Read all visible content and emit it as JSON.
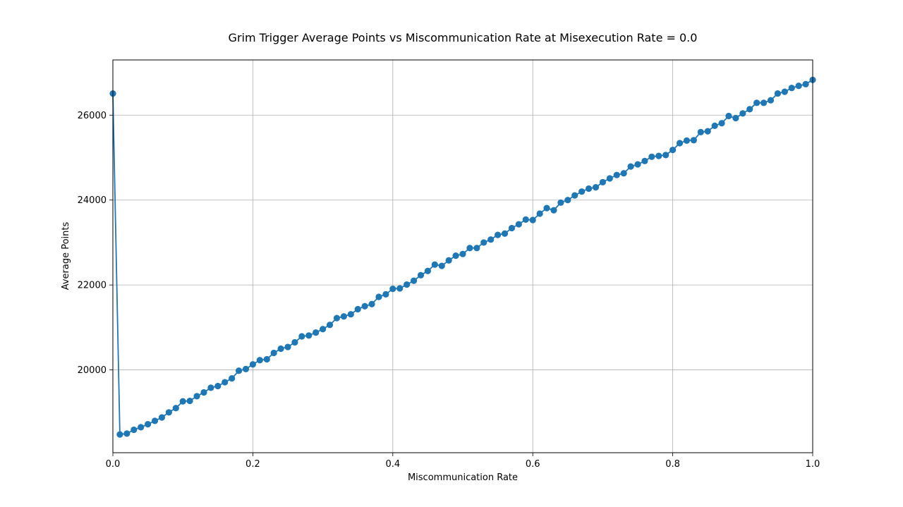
{
  "chart_data": {
    "type": "line",
    "title": "Grim Trigger Average Points vs Miscommunication Rate at Misexecution Rate = 0.0",
    "xlabel": "Miscommunication Rate",
    "ylabel": "Average Points",
    "xlim": [
      0.0,
      1.0
    ],
    "ylim": [
      18050,
      27300
    ],
    "xticks": [
      "0.0",
      "0.2",
      "0.4",
      "0.6",
      "0.8",
      "1.0"
    ],
    "yticks": [
      "20000",
      "22000",
      "24000",
      "26000"
    ],
    "grid": true,
    "marker": "circle",
    "series_color": "#1f77b4",
    "series": [
      {
        "x": [
          0.0,
          0.01,
          0.02,
          0.03,
          0.04,
          0.05,
          0.06,
          0.07,
          0.08,
          0.09,
          0.1,
          0.11,
          0.12,
          0.13,
          0.14,
          0.15,
          0.16,
          0.17,
          0.18,
          0.19,
          0.2,
          0.21,
          0.22,
          0.23,
          0.24,
          0.25,
          0.26,
          0.27,
          0.28,
          0.29,
          0.3,
          0.31,
          0.32,
          0.33,
          0.34,
          0.35,
          0.36,
          0.37,
          0.38,
          0.39,
          0.4,
          0.41,
          0.42,
          0.43,
          0.44,
          0.45,
          0.46,
          0.47,
          0.48,
          0.49,
          0.5,
          0.51,
          0.52,
          0.53,
          0.54,
          0.55,
          0.56,
          0.57,
          0.58,
          0.59,
          0.6,
          0.61,
          0.62,
          0.63,
          0.64,
          0.65,
          0.66,
          0.67,
          0.68,
          0.69,
          0.7,
          0.71,
          0.72,
          0.73,
          0.74,
          0.75,
          0.76,
          0.77,
          0.78,
          0.79,
          0.8,
          0.81,
          0.82,
          0.83,
          0.84,
          0.85,
          0.86,
          0.87,
          0.88,
          0.89,
          0.9,
          0.91,
          0.92,
          0.93,
          0.94,
          0.95,
          0.96,
          0.97,
          0.98,
          0.99,
          1.0
        ],
        "y": [
          26510,
          18480,
          18500,
          18590,
          18650,
          18720,
          18800,
          18880,
          19000,
          19100,
          19260,
          19270,
          19380,
          19470,
          19580,
          19620,
          19710,
          19800,
          19980,
          20020,
          20130,
          20230,
          20250,
          20400,
          20500,
          20540,
          20650,
          20790,
          20810,
          20880,
          20960,
          21060,
          21220,
          21260,
          21310,
          21430,
          21500,
          21550,
          21720,
          21780,
          21910,
          21920,
          22010,
          22100,
          22230,
          22330,
          22480,
          22450,
          22580,
          22690,
          22730,
          22870,
          22870,
          23000,
          23070,
          23180,
          23210,
          23340,
          23430,
          23540,
          23530,
          23680,
          23810,
          23760,
          23940,
          24000,
          24110,
          24200,
          24270,
          24300,
          24420,
          24510,
          24590,
          24630,
          24790,
          24840,
          24920,
          25020,
          25040,
          25060,
          25180,
          25340,
          25400,
          25410,
          25600,
          25620,
          25750,
          25810,
          25980,
          25930,
          26040,
          26140,
          26290,
          26290,
          26350,
          26510,
          26550,
          26640,
          26690,
          26730,
          26830
        ]
      }
    ]
  }
}
